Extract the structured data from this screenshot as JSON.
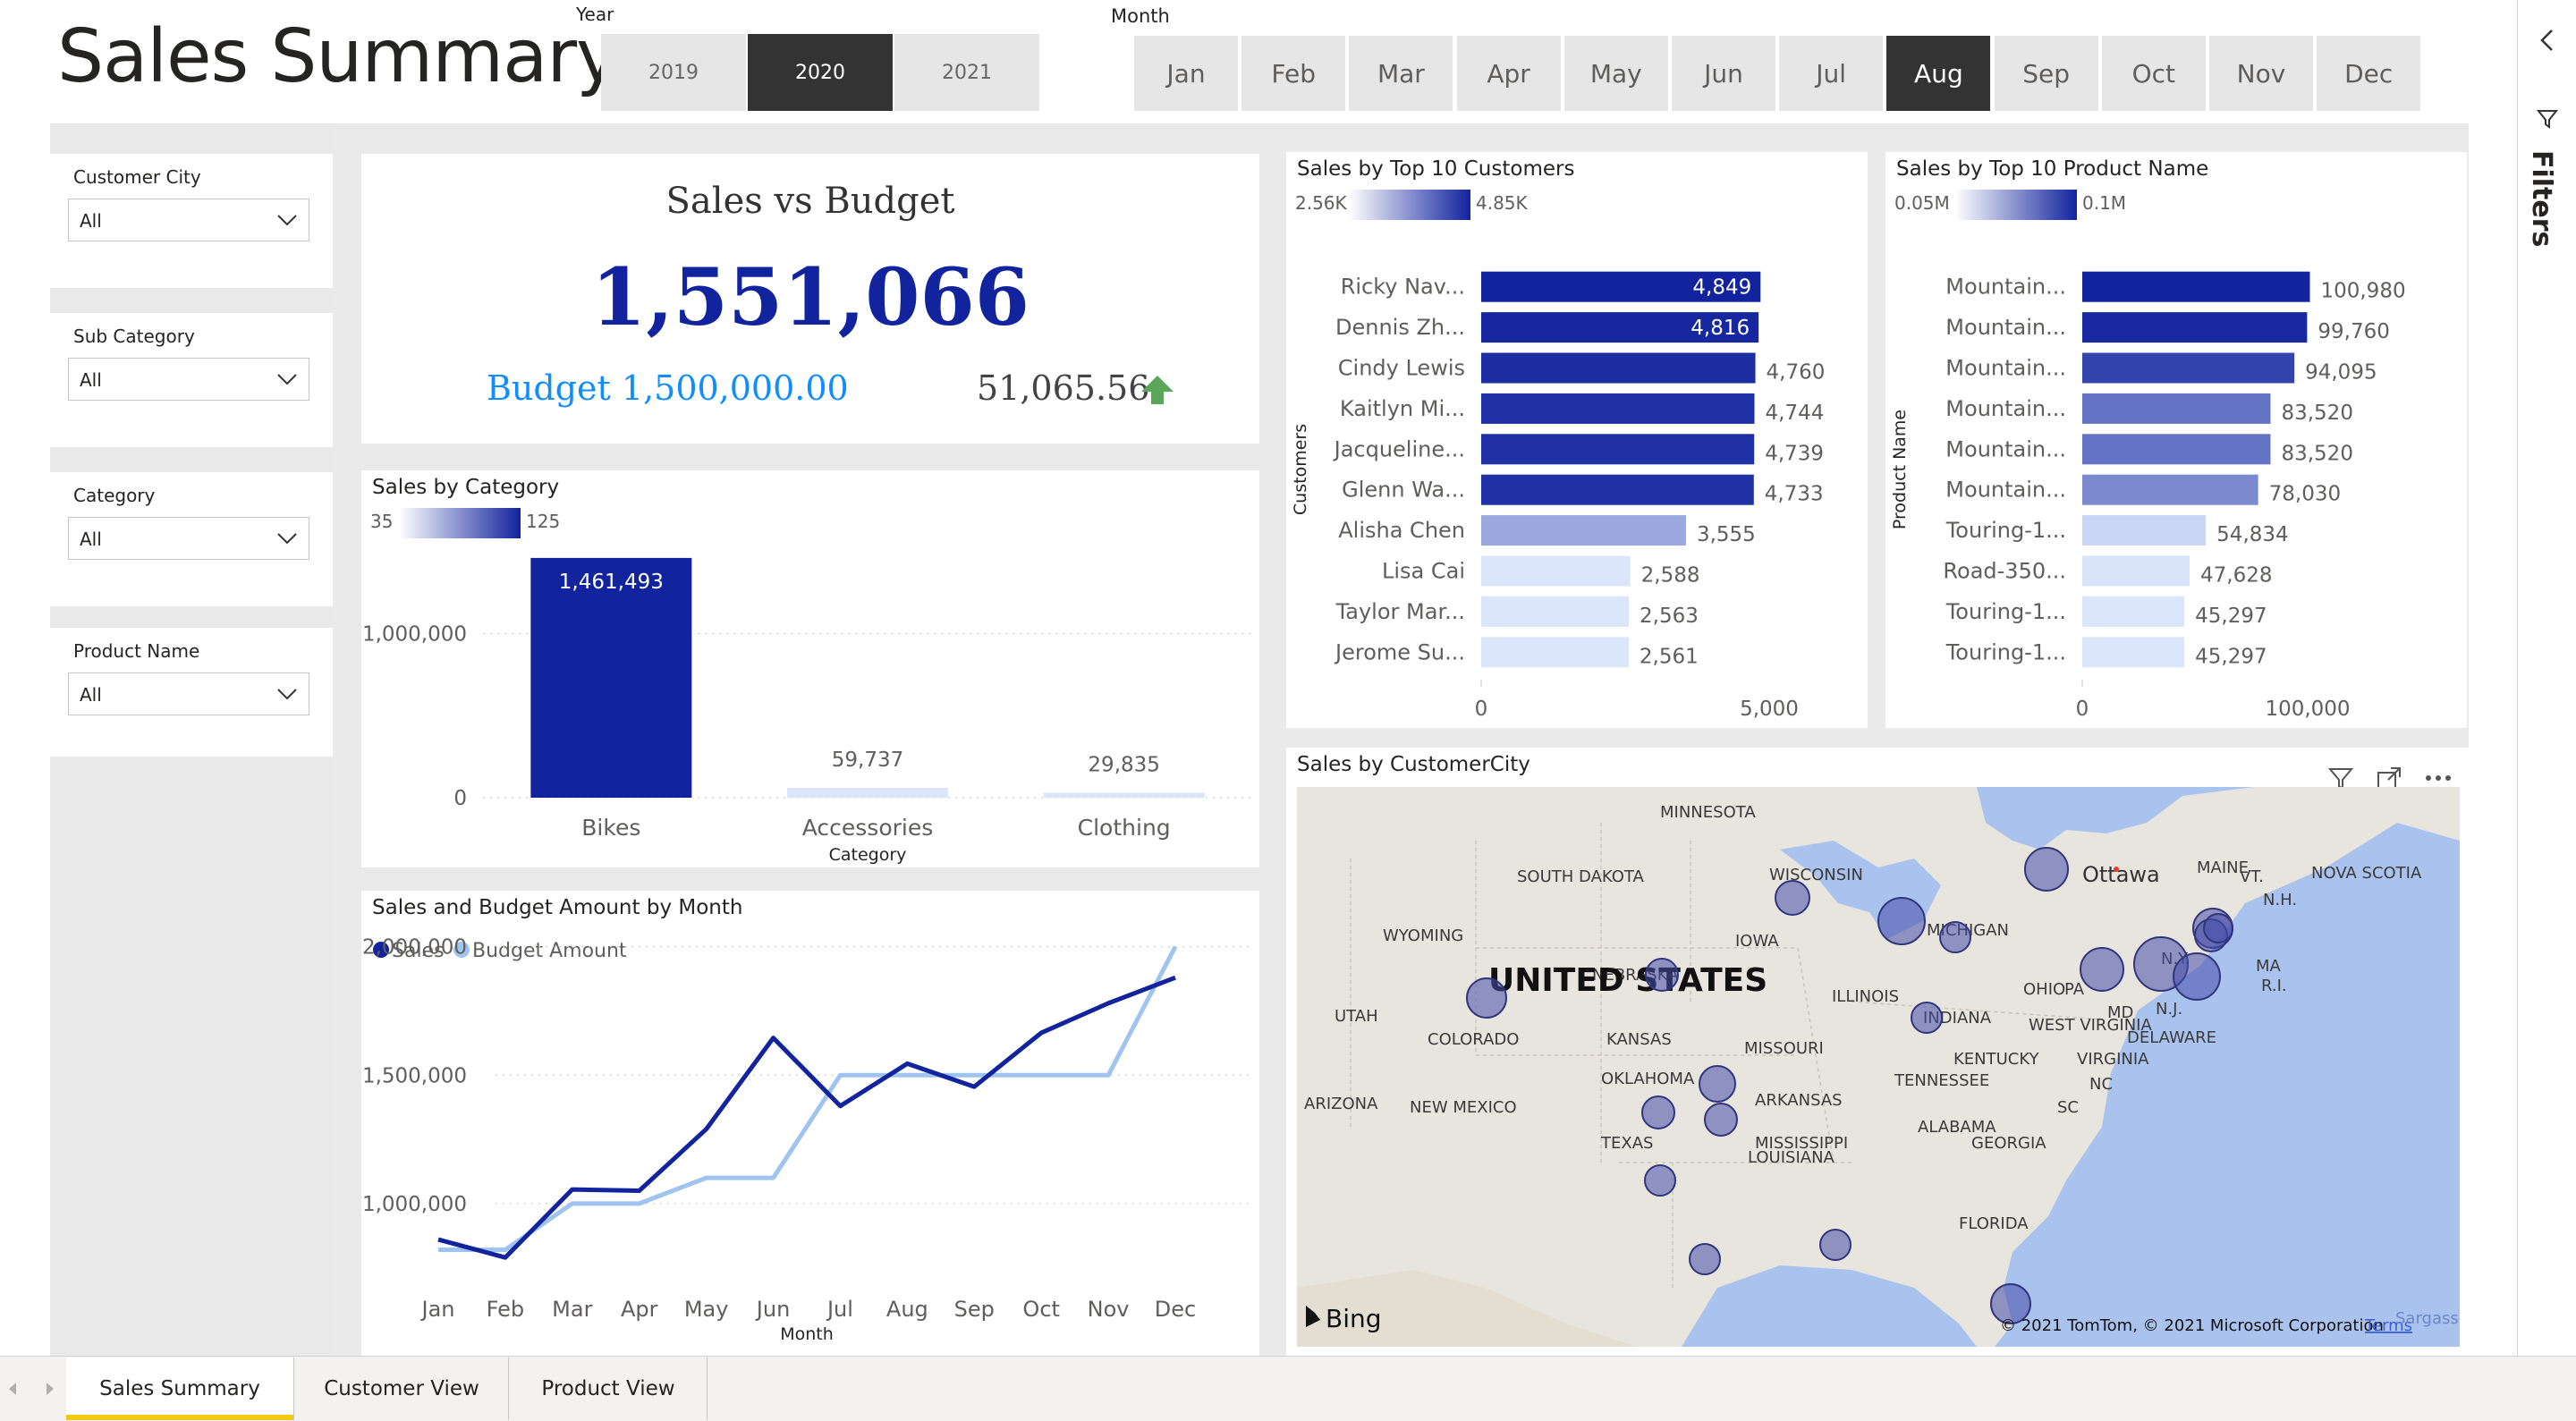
{
  "page_title": "Sales Summary",
  "year_slicer": {
    "label": "Year",
    "options": [
      "2019",
      "2020",
      "2021"
    ],
    "selected": "2020"
  },
  "month_slicer": {
    "label": "Month",
    "options": [
      "Jan",
      "Feb",
      "Mar",
      "Apr",
      "May",
      "Jun",
      "Jul",
      "Aug",
      "Sep",
      "Oct",
      "Nov",
      "Dec"
    ],
    "selected": "Aug"
  },
  "filters_pane": {
    "label": "Filters"
  },
  "slicers": [
    {
      "title": "Customer City",
      "value": "All"
    },
    {
      "title": "Sub Category",
      "value": "All"
    },
    {
      "title": "Category",
      "value": "All"
    },
    {
      "title": "Product Name",
      "value": "All"
    }
  ],
  "kpi": {
    "title": "Sales vs Budget",
    "value": "1,551,066",
    "budget_label": "Budget 1,500,000.00",
    "variance": "51,065.56",
    "trend_icon": "arrow-up-icon",
    "colors": {
      "value": "#12239e",
      "budget": "#118dff",
      "trend": "#5aa75a"
    }
  },
  "category_chart": {
    "title": "Sales by Category",
    "legend_min": "35",
    "legend_max": "125",
    "y_ticks": [
      "1,000,000",
      "0"
    ],
    "x_axis_title": "Category"
  },
  "month_chart": {
    "title": "Sales and Budget Amount by Month",
    "y_ticks": [
      "2,000,000",
      "1,500,000",
      "1,000,000"
    ],
    "x_axis_title": "Month"
  },
  "customers_chart": {
    "title": "Sales by Top 10 Customers",
    "legend_min": "2.56K",
    "legend_max": "4.85K",
    "y_axis_title": "Customers",
    "x_ticks": [
      "0",
      "5,000"
    ]
  },
  "products_chart": {
    "title": "Sales by Top 10 Product Name",
    "legend_min": "0.05M",
    "legend_max": "0.1M",
    "y_axis_title": "Product Name",
    "x_ticks": [
      "0",
      "100,000"
    ]
  },
  "map": {
    "title": "Sales by CustomerCity",
    "country_label": "UNITED STATES",
    "provider": "Bing",
    "copyright": "© 2021 TomTom, © 2021 Microsoft Corporation",
    "terms": "Terms",
    "sea_label": "Sargasso",
    "place_labels": [
      "MINNESOTA",
      "SOUTH DAKOTA",
      "WISCONSIN",
      "MAINE",
      "NOVA SCOTIA",
      "Ottawa",
      "VT.",
      "N.H.",
      "WYOMING",
      "IOWA",
      "MICHIGAN",
      "N.Y.",
      "MA",
      "R.I.",
      "NEBRASKA",
      "ILLINOIS",
      "OHIO",
      "PA",
      "N.J.",
      "MD",
      "UTAH",
      "COLORADO",
      "KANSAS",
      "INDIANA",
      "WEST VIRGINIA",
      "DELAWARE",
      "MISSOURI",
      "KENTUCKY",
      "VIRGINIA",
      "OKLAHOMA",
      "TENNESSEE",
      "NC",
      "ARIZONA",
      "NEW MEXICO",
      "ARKANSAS",
      "SC",
      "ALABAMA",
      "TEXAS",
      "MISSISSIPPI",
      "GEORGIA",
      "LOUISIANA",
      "FLORIDA"
    ]
  },
  "tabs": [
    "Sales Summary",
    "Customer View",
    "Product View"
  ],
  "active_tab": "Sales Summary",
  "chart_data": [
    {
      "type": "bar",
      "title": "Sales by Category",
      "categories": [
        "Bikes",
        "Accessories",
        "Clothing"
      ],
      "values": [
        1461493,
        59737,
        29835
      ],
      "data_labels": [
        "1,461,493",
        "59,737",
        "29,835"
      ],
      "xlabel": "Category",
      "ylim": [
        0,
        1450000
      ],
      "colors": [
        "#12239e",
        "#dbe6fb",
        "#dbe6fb"
      ]
    },
    {
      "type": "line",
      "title": "Sales and Budget Amount by Month",
      "categories": [
        "Jan",
        "Feb",
        "Mar",
        "Apr",
        "May",
        "Jun",
        "Jul",
        "Aug",
        "Sep",
        "Oct",
        "Nov",
        "Dec"
      ],
      "series": [
        {
          "name": "Sales",
          "color": "#12239e",
          "values": [
            860000,
            790000,
            1055000,
            1050000,
            1290000,
            1645000,
            1380000,
            1545000,
            1455000,
            1665000,
            1780000,
            1880000
          ]
        },
        {
          "name": "Budget Amount",
          "color": "#a0c4f0",
          "values": [
            820000,
            820000,
            1000000,
            1000000,
            1100000,
            1100000,
            1500000,
            1500000,
            1500000,
            1500000,
            1500000,
            2000000
          ]
        }
      ],
      "xlabel": "Month",
      "ylim": [
        700000,
        2100000
      ]
    },
    {
      "type": "bar",
      "orientation": "horizontal",
      "title": "Sales by Top 10 Customers",
      "categories": [
        "Ricky Nav...",
        "Dennis Zh...",
        "Cindy Lewis",
        "Kaitlyn Mi...",
        "Jacqueline...",
        "Glenn Wa...",
        "Alisha Chen",
        "Lisa Cai",
        "Taylor Mar...",
        "Jerome Su..."
      ],
      "values": [
        4849,
        4816,
        4760,
        4744,
        4739,
        4733,
        3555,
        2588,
        2563,
        2561
      ],
      "data_labels": [
        "4,849",
        "4,816",
        "4,760",
        "4,744",
        "4,739",
        "4,733",
        "3,555",
        "2,588",
        "2,563",
        "2,561"
      ],
      "xlim": [
        0,
        5000
      ],
      "ylabel": "Customers"
    },
    {
      "type": "bar",
      "orientation": "horizontal",
      "title": "Sales by Top 10 Product Name",
      "categories": [
        "Mountain...",
        "Mountain...",
        "Mountain...",
        "Mountain...",
        "Mountain...",
        "Mountain...",
        "Touring-1...",
        "Road-350...",
        "Touring-1...",
        "Touring-1..."
      ],
      "values": [
        100980,
        99760,
        94095,
        83520,
        83520,
        78030,
        54834,
        47628,
        45297,
        45297
      ],
      "data_labels": [
        "100,980",
        "99,760",
        "94,095",
        "83,520",
        "83,520",
        "78,030",
        "54,834",
        "47,628",
        "45,297",
        "45,297"
      ],
      "xlim": [
        0,
        100000
      ],
      "ylabel": "Product Name"
    }
  ]
}
